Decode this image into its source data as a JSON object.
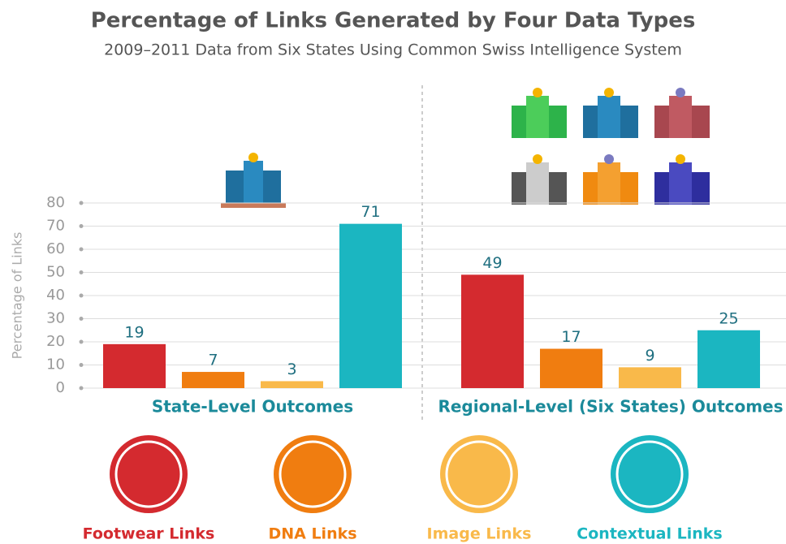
{
  "chart_data": {
    "type": "bar",
    "title": "Percentage of Links Generated by Four Data Types",
    "subtitle": "2009–2011 Data from Six States Using Common Swiss Intelligence System",
    "y_label": "Percentage of Links",
    "categories": [
      "State-Level Outcomes",
      "Regional-Level (Six States) Outcomes"
    ],
    "series": [
      {
        "name": "Footwear Links",
        "color": "#d42a2f",
        "values": [
          19,
          49
        ]
      },
      {
        "name": "DNA Links",
        "color": "#f07d10",
        "values": [
          7,
          17
        ]
      },
      {
        "name": "Image Links",
        "color": "#f9b94a",
        "values": [
          3,
          9
        ]
      },
      {
        "name": "Contextual Links",
        "color": "#1bb6c1",
        "values": [
          71,
          25
        ]
      }
    ],
    "ylim": [
      0,
      80
    ],
    "yticks": [
      0,
      10,
      20,
      30,
      40,
      50,
      60,
      70,
      80
    ],
    "grid": true
  }
}
